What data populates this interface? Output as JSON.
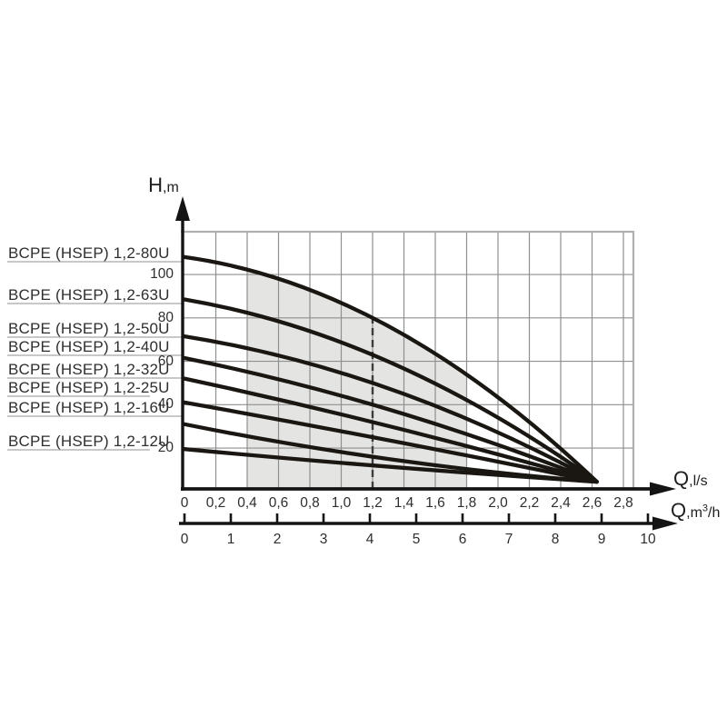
{
  "page": {
    "background": "#ffffff"
  },
  "axes": {
    "y": {
      "main": "H",
      "unit": ",m"
    },
    "x1": {
      "main": "Q",
      "unit": ",l/s"
    },
    "x2": {
      "main": "Q",
      "unit_pre": ",m",
      "sup": "3",
      "unit_post": "/h"
    }
  },
  "chart_data": {
    "type": "line",
    "ylabel": "H,m",
    "xlabel_primary": "Q,l/s",
    "xlabel_secondary": "Q,m3/h",
    "ylim": [
      0,
      120
    ],
    "xlim_primary_ls": [
      0,
      2.9
    ],
    "xlim_secondary_m3h": [
      0,
      10
    ],
    "grid": true,
    "y_tick_values": [
      20,
      40,
      60,
      80,
      100
    ],
    "y_tick_labels": [
      "20",
      "40",
      "60",
      "80",
      "100"
    ],
    "x_tick_values_ls": [
      0,
      0.2,
      0.4,
      0.6,
      0.8,
      1.0,
      1.2,
      1.4,
      1.6,
      1.8,
      2.0,
      2.2,
      2.4,
      2.6,
      2.8
    ],
    "x_tick_labels_ls": [
      "0",
      "0,2",
      "0,4",
      "0,6",
      "0,8",
      "1,0",
      "1,2",
      "1,4",
      "1,6",
      "1,8",
      "2,0",
      "2,2",
      "2,4",
      "2,6",
      "2,8"
    ],
    "x_tick_labels_m3h": [
      "0",
      "1",
      "2",
      "3",
      "4",
      "5",
      "6",
      "7",
      "8",
      "9",
      "10"
    ],
    "series": [
      {
        "name": "BCPE (HSEP) 1,2-80U",
        "shutoff_head_m": 108.0,
        "head_at_nominal_m": 80
      },
      {
        "name": "BCPE (HSEP) 1,2-63U",
        "shutoff_head_m": 88.5,
        "head_at_nominal_m": 63
      },
      {
        "name": "BCPE (HSEP) 1,2-50U",
        "shutoff_head_m": 71.5,
        "head_at_nominal_m": 50
      },
      {
        "name": "BCPE (HSEP) 1,2-40U",
        "shutoff_head_m": 61.5,
        "head_at_nominal_m": 40
      },
      {
        "name": "BCPE (HSEP) 1,2-32U",
        "shutoff_head_m": 52.0,
        "head_at_nominal_m": 32
      },
      {
        "name": "BCPE (HSEP) 1,2-25U",
        "shutoff_head_m": 41.0,
        "head_at_nominal_m": 25
      },
      {
        "name": "BCPE (HSEP) 1,2-16U",
        "shutoff_head_m": 31.0,
        "head_at_nominal_m": 16
      },
      {
        "name": "BCPE (HSEP) 1,2-12U",
        "shutoff_head_m": 19.5,
        "head_at_nominal_m": 12
      }
    ],
    "nominal_flow_ls": 1.2,
    "max_flow_ls": 2.63,
    "head_at_max_flow_m": 4.5,
    "shaded_flow_range_ls": [
      0.4,
      1.8
    ],
    "colors": {
      "curve": "#1a1712",
      "axis": "#141414",
      "grid": "#8f8f8f",
      "border": "#b0b0b0",
      "shaded_region": "#e4e4e2",
      "dashed_line": "#3d3d3d",
      "leader_line": "#b6b6b6",
      "text": "#2e2e2e"
    }
  }
}
